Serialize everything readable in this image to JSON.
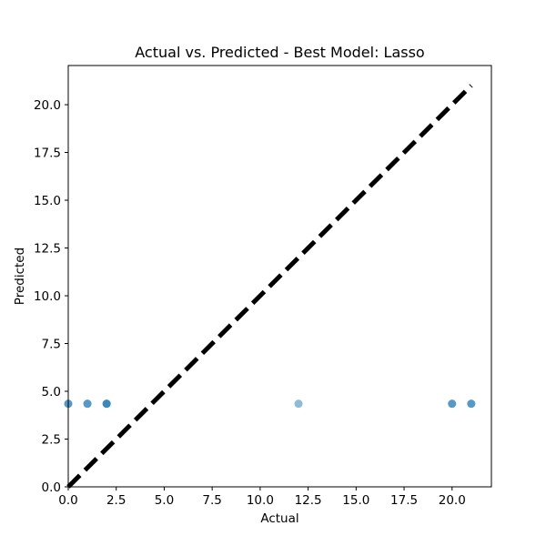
{
  "chart_data": {
    "type": "scatter",
    "title": "Actual vs. Predicted - Best Model: Lasso",
    "xlabel": "Actual",
    "ylabel": "Predicted",
    "xlim": [
      0,
      22.05
    ],
    "ylim": [
      0,
      22.05
    ],
    "x_ticks": [
      0,
      2.5,
      5,
      7.5,
      10,
      12.5,
      15,
      17.5,
      20
    ],
    "x_tick_labels": [
      "0.0",
      "2.5",
      "5.0",
      "7.5",
      "10.0",
      "12.5",
      "15.0",
      "17.5",
      "20.0"
    ],
    "y_ticks": [
      0,
      2.5,
      5,
      7.5,
      10,
      12.5,
      15,
      17.5,
      20
    ],
    "y_tick_labels": [
      "0.0",
      "2.5",
      "5.0",
      "7.5",
      "10.0",
      "12.5",
      "15.0",
      "17.5",
      "20.0"
    ],
    "grid": false,
    "series": [
      {
        "color": "#1f77b4",
        "points": [
          {
            "x": 0,
            "y": 4.35
          },
          {
            "x": 0,
            "y": 4.35
          },
          {
            "x": 1,
            "y": 4.35
          },
          {
            "x": 1,
            "y": 4.35
          },
          {
            "x": 2,
            "y": 4.35
          },
          {
            "x": 2,
            "y": 4.35
          },
          {
            "x": 2,
            "y": 4.35
          },
          {
            "x": 12,
            "y": 4.35
          },
          {
            "x": 20,
            "y": 4.35
          },
          {
            "x": 20,
            "y": 4.35
          },
          {
            "x": 21,
            "y": 4.35
          },
          {
            "x": 21,
            "y": 4.35
          }
        ]
      }
    ],
    "reference_line": {
      "x": [
        0,
        21
      ],
      "y": [
        0,
        21
      ],
      "color": "#000000",
      "style": "dashed"
    }
  }
}
